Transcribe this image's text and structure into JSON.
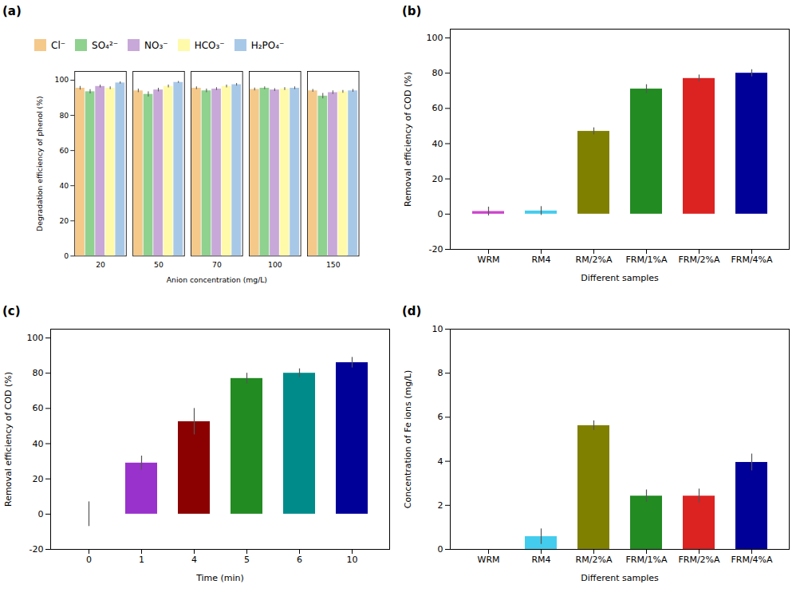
{
  "chart_data": [
    {
      "type": "bar",
      "title": "(a)",
      "xlabel": "Anion concentration (mg/L)",
      "ylabel": "Degradation efficiency of phenol (%)",
      "categories": [
        "20",
        "50",
        "70",
        "100",
        "150"
      ],
      "series": [
        {
          "name": "Cl⁻",
          "color": "#F5C98A",
          "values": [
            95.5,
            94.0,
            95.5,
            94.8,
            94.0
          ],
          "errors": [
            1.0,
            1.0,
            0.8,
            0.8,
            0.8
          ]
        },
        {
          "name": "SO₄²⁻",
          "color": "#8FD18F",
          "values": [
            93.5,
            92.0,
            94.0,
            95.5,
            91.0
          ],
          "errors": [
            1.2,
            1.5,
            1.0,
            0.8,
            1.5
          ]
        },
        {
          "name": "NO₃⁻",
          "color": "#C8A8D8",
          "values": [
            96.5,
            94.5,
            95.0,
            94.5,
            93.0
          ],
          "errors": [
            0.8,
            1.0,
            0.8,
            0.8,
            1.0
          ]
        },
        {
          "name": "HCO₃⁻",
          "color": "#FFFAAA",
          "values": [
            95.5,
            96.5,
            96.5,
            95.0,
            93.5
          ],
          "errors": [
            0.8,
            0.8,
            0.8,
            0.8,
            0.8
          ]
        },
        {
          "name": "H₂PO₄⁻",
          "color": "#A8C8E8",
          "values": [
            98.5,
            98.8,
            97.5,
            95.5,
            94.0
          ],
          "errors": [
            0.6,
            0.5,
            0.7,
            0.8,
            0.8
          ]
        }
      ],
      "ylim": [
        0,
        105
      ],
      "yticks": [
        0,
        20,
        40,
        60,
        80,
        100
      ],
      "legend": "top",
      "grid": false
    },
    {
      "type": "bar",
      "title": "(b)",
      "xlabel": "Different samples",
      "ylabel": "Removal efficiency of COD (%)",
      "categories": [
        "WRM",
        "RM4",
        "RM/2%A",
        "FRM/1%A",
        "FRM/2%A",
        "FRM/4%A"
      ],
      "values": [
        1.5,
        1.8,
        47.0,
        71.0,
        77.0,
        80.0
      ],
      "errors": [
        2.5,
        2.5,
        2.0,
        2.5,
        2.0,
        2.0
      ],
      "colors": [
        "#CC44CC",
        "#44CCEE",
        "#808000",
        "#228B22",
        "#DD2222",
        "#000099"
      ],
      "ylim": [
        -20,
        105
      ],
      "yticks": [
        -20,
        0,
        20,
        40,
        60,
        80,
        100
      ],
      "grid": false
    },
    {
      "type": "bar",
      "title": "(c)",
      "xlabel": "Time (min)",
      "ylabel": "Removal efficiency of COD (%)",
      "categories": [
        "0",
        "1",
        "4",
        "5",
        "6",
        "10"
      ],
      "values": [
        0,
        29.0,
        52.5,
        77.0,
        80.0,
        86.0
      ],
      "errors": [
        7.0,
        4.0,
        7.5,
        3.0,
        2.5,
        3.0
      ],
      "colors": [
        "#88CCEE",
        "#9932CC",
        "#8B0000",
        "#228B22",
        "#008B8B",
        "#000099"
      ],
      "ylim": [
        -20,
        105
      ],
      "yticks": [
        -20,
        0,
        20,
        40,
        60,
        80,
        100
      ],
      "grid": false
    },
    {
      "type": "bar",
      "title": "(d)",
      "xlabel": "Different samples",
      "ylabel": "Concentration of Fe ions (mg/L)",
      "categories": [
        "WRM",
        "RM4",
        "RM/2%A",
        "FRM/1%A",
        "FRM/2%A",
        "FRM/4%A"
      ],
      "values": [
        0.0,
        0.58,
        5.62,
        2.42,
        2.42,
        3.95
      ],
      "errors": [
        0.0,
        0.35,
        0.22,
        0.28,
        0.32,
        0.38
      ],
      "colors": [
        "#CC44CC",
        "#44CCEE",
        "#808000",
        "#228B22",
        "#DD2222",
        "#000099"
      ],
      "ylim": [
        0,
        10
      ],
      "yticks": [
        0,
        2,
        4,
        6,
        8,
        10
      ],
      "grid": false
    }
  ]
}
